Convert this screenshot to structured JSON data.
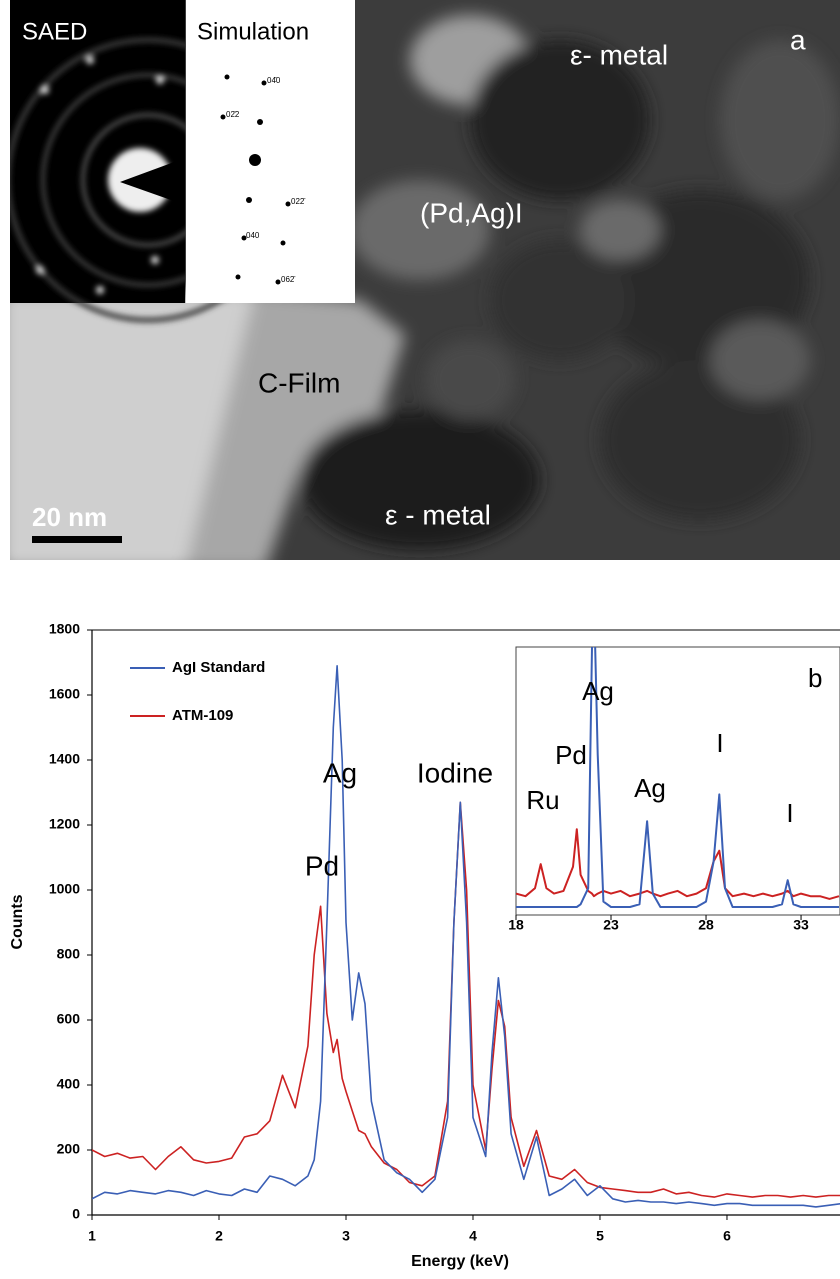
{
  "image": {
    "panel_label": "a",
    "labels": [
      "ε- metal",
      "(Pd,Ag)I",
      "C-Film",
      "ε - metal"
    ],
    "scale_bar": "20 nm",
    "saed": "SAED",
    "simulation": {
      "title": "Simulation",
      "spots": [
        "04̄0",
        "02̄2",
        "022̄",
        "040",
        "062̄"
      ]
    }
  },
  "chart_data": [
    {
      "type": "line",
      "x_label": "Energy (keV)",
      "y_label": "Counts",
      "legend": "upper left",
      "annotations": [
        "Ag",
        "Pd",
        "Iodine"
      ],
      "x": [
        1.0,
        1.1,
        1.2,
        1.3,
        1.4,
        1.5,
        1.6,
        1.7,
        1.8,
        1.9,
        2.0,
        2.1,
        2.2,
        2.3,
        2.4,
        2.5,
        2.6,
        2.7,
        2.75,
        2.8,
        2.85,
        2.9,
        2.93,
        2.97,
        3.0,
        3.05,
        3.1,
        3.15,
        3.2,
        3.3,
        3.4,
        3.5,
        3.6,
        3.7,
        3.8,
        3.85,
        3.9,
        3.95,
        4.0,
        4.1,
        4.15,
        4.2,
        4.25,
        4.3,
        4.4,
        4.5,
        4.6,
        4.7,
        4.8,
        4.9,
        5.0,
        5.1,
        5.2,
        5.3,
        5.4,
        5.5,
        5.6,
        5.7,
        5.8,
        5.9,
        6.0,
        6.1,
        6.2,
        6.3,
        6.4,
        6.5,
        6.6,
        6.7,
        6.8,
        6.9
      ],
      "series": [
        {
          "name": "AgI Standard",
          "color": "#3a5fb5",
          "values": [
            50,
            70,
            65,
            75,
            70,
            65,
            75,
            70,
            60,
            75,
            65,
            60,
            80,
            70,
            120,
            110,
            90,
            120,
            170,
            350,
            900,
            1500,
            1690,
            1400,
            900,
            600,
            745,
            650,
            350,
            170,
            130,
            110,
            70,
            110,
            300,
            900,
            1270,
            900,
            300,
            180,
            500,
            730,
            550,
            250,
            110,
            240,
            60,
            80,
            110,
            60,
            90,
            50,
            40,
            45,
            40,
            40,
            35,
            40,
            35,
            30,
            35,
            35,
            30,
            30,
            30,
            30,
            30,
            25,
            30,
            35
          ]
        },
        {
          "name": "ATM-109",
          "color": "#cc2222",
          "values": [
            200,
            180,
            190,
            175,
            180,
            140,
            180,
            210,
            170,
            160,
            165,
            175,
            240,
            250,
            290,
            430,
            330,
            520,
            800,
            950,
            620,
            500,
            540,
            420,
            380,
            320,
            260,
            250,
            210,
            160,
            140,
            100,
            90,
            120,
            350,
            900,
            1270,
            1000,
            400,
            200,
            450,
            660,
            580,
            300,
            150,
            260,
            120,
            110,
            140,
            100,
            85,
            80,
            75,
            70,
            70,
            80,
            65,
            70,
            60,
            55,
            65,
            60,
            55,
            60,
            60,
            55,
            60,
            55,
            60,
            60
          ]
        }
      ],
      "xlim": [
        1,
        6.89
      ],
      "xticks": [
        1,
        2,
        3,
        4,
        5,
        6
      ],
      "ylim": [
        0,
        1800
      ],
      "yticks": [
        0,
        200,
        400,
        600,
        800,
        1000,
        1200,
        1400,
        1600,
        1800
      ]
    },
    {
      "type": "line",
      "panel_label": "b",
      "annotations": [
        "Ru",
        "Pd",
        "Ag",
        "Ag",
        "I",
        "I"
      ],
      "x": [
        18,
        18.5,
        19,
        19.3,
        19.6,
        20,
        20.5,
        21,
        21.2,
        21.4,
        21.8,
        22,
        22.1,
        22.3,
        22.6,
        23,
        23.5,
        24,
        24.5,
        24.9,
        25.2,
        25.6,
        26,
        26.5,
        27,
        27.5,
        28,
        28.4,
        28.7,
        29,
        29.4,
        30,
        30.5,
        31,
        31.5,
        32,
        32.3,
        32.6,
        33,
        33.5,
        34,
        34.5,
        35
      ],
      "series": [
        {
          "color": "#3a5fb5",
          "values": [
            3,
            3,
            3,
            3,
            3,
            3,
            3,
            3,
            3,
            4,
            10,
            100,
            120,
            60,
            5,
            3,
            3,
            3,
            4,
            35,
            8,
            3,
            3,
            3,
            3,
            3,
            5,
            20,
            45,
            10,
            3,
            3,
            3,
            3,
            3,
            4,
            13,
            4,
            3,
            3,
            3,
            3,
            3
          ]
        },
        {
          "color": "#cc2222",
          "values": [
            8,
            7,
            10,
            19,
            10,
            8,
            9,
            18,
            32,
            15,
            9,
            8,
            7,
            8,
            9,
            8,
            9,
            7,
            8,
            9,
            8,
            7,
            8,
            9,
            7,
            8,
            10,
            20,
            24,
            10,
            7,
            8,
            7,
            8,
            7,
            8,
            9,
            7,
            8,
            7,
            7,
            6,
            7
          ]
        }
      ],
      "xlim": [
        18,
        35.05
      ],
      "xticks": [
        18,
        23,
        28,
        33
      ],
      "ylim": [
        0,
        100
      ]
    }
  ]
}
